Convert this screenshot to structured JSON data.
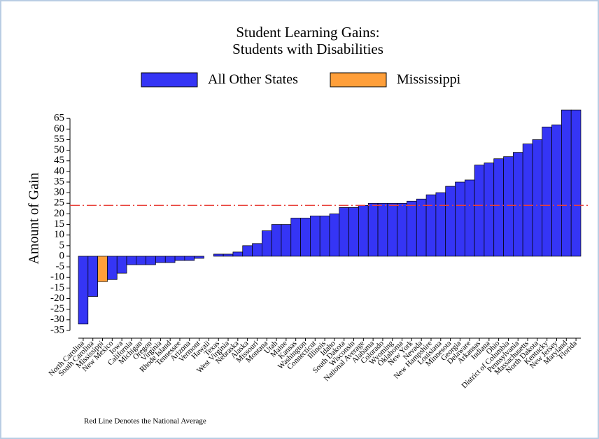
{
  "chart_data": {
    "type": "bar",
    "title": [
      "Student Learning Gains:",
      "Students with Disabilities"
    ],
    "y_label": "Amount of Gain",
    "note": "Red Line Denotes the National Average",
    "categories": [
      "North Carolina",
      "South Carolina",
      "Mississippi",
      "New Mexico",
      "Iowa",
      "California",
      "Michigan",
      "Oregon",
      "Virginia",
      "Rhode Island",
      "Tennessee",
      "Arizona",
      "Vermont",
      "Hawaii",
      "Texas",
      "West Virginia",
      "Nebraska",
      "Alaska",
      "Missouri",
      "Montana",
      "Utah",
      "Maine",
      "Kansas",
      "Washington",
      "Connecticut",
      "Illinois",
      "Idaho",
      "South Dakota",
      "Wisconsin",
      "National Average",
      "Alabama",
      "Colorado",
      "Wyoming",
      "Oklahoma",
      "New York",
      "Nevada",
      "New Hampshire",
      "Louisiana",
      "Minnesota",
      "Georgia",
      "Delaware",
      "Arkansas",
      "Indiana",
      "Ohio",
      "District of Columbia",
      "Pennsylvania",
      "Massachusetts",
      "North Dakota",
      "Kentucky",
      "New Jersey",
      "Maryland",
      "Florida"
    ],
    "series": [
      {
        "name": "All Other States",
        "color": "#3535f5",
        "values": [
          -32,
          -19,
          null,
          -11,
          -8,
          -4,
          -4,
          -4,
          -3,
          -3,
          -2,
          -2,
          -1,
          0,
          1,
          1,
          2,
          5,
          6,
          12,
          15,
          15,
          18,
          18,
          19,
          19,
          20,
          23,
          23,
          24,
          25,
          25,
          25,
          25,
          26,
          27,
          29,
          30,
          33,
          35,
          36,
          43,
          44,
          46,
          47,
          49,
          53,
          55,
          61,
          62,
          69,
          69
        ]
      },
      {
        "name": "Mississippi",
        "color": "#ff9f3a",
        "values": [
          null,
          null,
          -12,
          null,
          null,
          null,
          null,
          null,
          null,
          null,
          null,
          null,
          null,
          null,
          null,
          null,
          null,
          null,
          null,
          null,
          null,
          null,
          null,
          null,
          null,
          null,
          null,
          null,
          null,
          null,
          null,
          null,
          null,
          null,
          null,
          null,
          null,
          null,
          null,
          null,
          null,
          null,
          null,
          null,
          null,
          null,
          null,
          null,
          null,
          null,
          null,
          null
        ]
      }
    ],
    "reference_line": 24,
    "reference_color": "#e8413a",
    "ylim": [
      -38,
      72
    ],
    "yticks": [
      -35,
      -30,
      -25,
      -20,
      -15,
      -10,
      -5,
      0,
      5,
      10,
      15,
      20,
      25,
      30,
      35,
      40,
      45,
      50,
      55,
      60,
      65
    ]
  }
}
